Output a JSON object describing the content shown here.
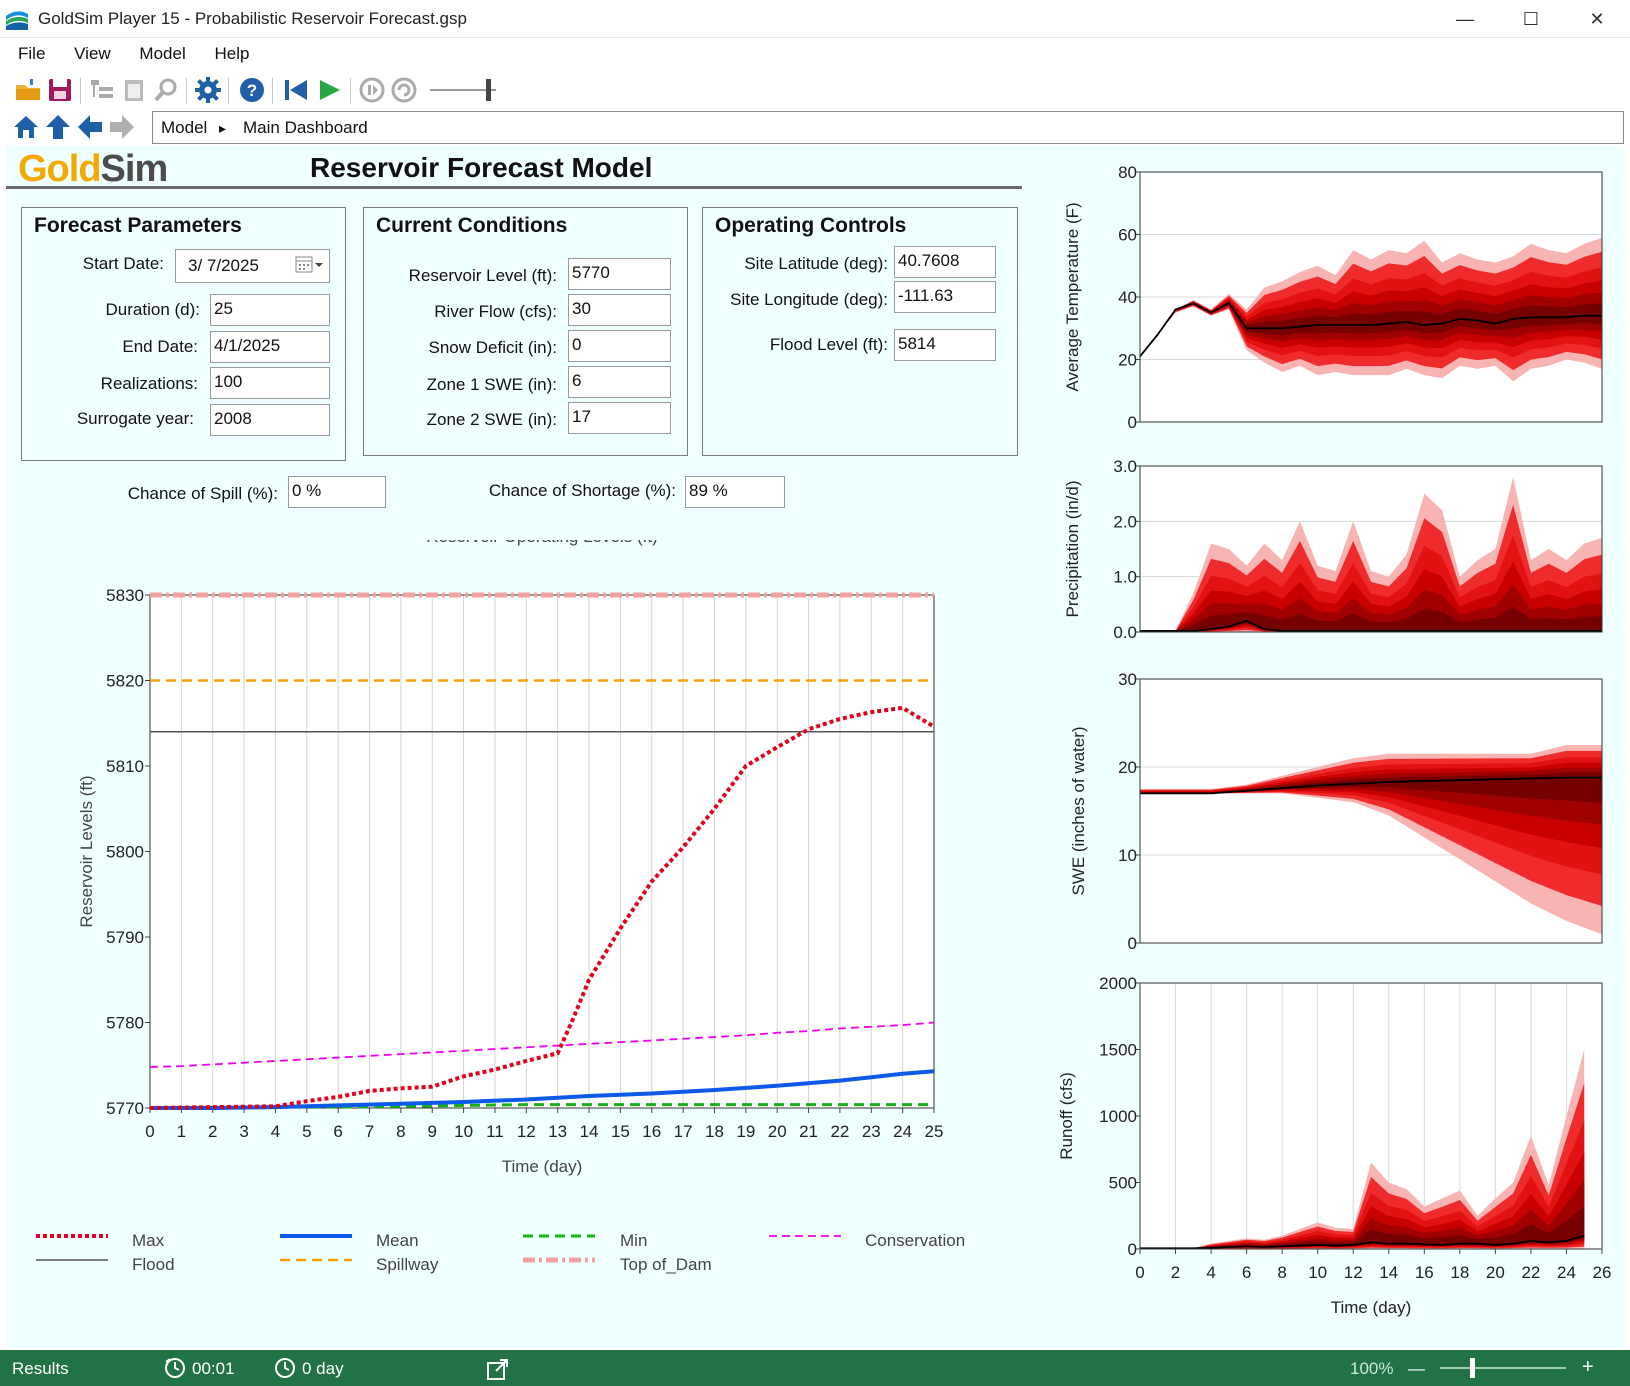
{
  "window": {
    "title": "GoldSim Player 15  - Probabilistic Reservoir Forecast.gsp",
    "minimize": "—",
    "maximize": "☐",
    "close": "✕"
  },
  "menu": [
    "File",
    "View",
    "Model",
    "Help"
  ],
  "breadcrumb": {
    "root": "Model",
    "sep": "▸",
    "current": "Main Dashboard"
  },
  "header": {
    "logo_gold": "Gold",
    "logo_sim": "Sim",
    "title": "Reservoir Forecast Model"
  },
  "forecast": {
    "title": "Forecast Parameters",
    "start_label": "Start Date:",
    "start_value": "3/  7/2025",
    "duration_label": "Duration (d):",
    "duration_value": "25",
    "end_label": "End Date:",
    "end_value": "4/1/2025",
    "realizations_label": "Realizations:",
    "realizations_value": "100",
    "surrogate_label": "Surrogate year:",
    "surrogate_value": "2008"
  },
  "conditions": {
    "title": "Current Conditions",
    "level_label": "Reservoir Level (ft):",
    "level_value": "5770",
    "flow_label": "River Flow (cfs):",
    "flow_value": "30",
    "snow_label": "Snow Deficit (in):",
    "snow_value": "0",
    "z1_label": "Zone 1 SWE (in):",
    "z1_value": "6",
    "z2_label": "Zone 2 SWE (in):",
    "z2_value": "17"
  },
  "controls": {
    "title": "Operating Controls",
    "lat_label": "Site Latitude (deg):",
    "lat_value": "40.7608",
    "lon_label": "Site Longitude (deg):",
    "lon_value": "-111.63",
    "flood_label": "Flood Level (ft):",
    "flood_value": "5814"
  },
  "results": {
    "spill_label": "Chance of Spill (%):",
    "spill_value": "0 %",
    "shortage_label": "Chance of Shortage (%):",
    "shortage_value": "89 %"
  },
  "status": {
    "results": "Results",
    "elapsed": "00:01",
    "simtime": "0 day",
    "zoom": "100%",
    "minus": "—",
    "plus": "+"
  },
  "colors": {
    "max": "#e0001b",
    "mean": "#0b5ae8",
    "min": "#16b316",
    "conservation": "#ee00ee",
    "flood": "#555555",
    "spillway": "#f5a000",
    "top_of_dam": "#f4a0a0"
  },
  "chart_data": [
    {
      "type": "line",
      "title": "Reservoir Operating Levels (ft)",
      "xlabel": "Time (day)",
      "ylabel": "Reservoir Levels (ft)",
      "xlim": [
        0,
        25
      ],
      "ylim": [
        5770,
        5830
      ],
      "xticks": [
        0,
        1,
        2,
        3,
        4,
        5,
        6,
        7,
        8,
        9,
        10,
        11,
        12,
        13,
        14,
        15,
        16,
        17,
        18,
        19,
        20,
        21,
        22,
        23,
        24,
        25
      ],
      "yticks": [
        5770,
        5780,
        5790,
        5800,
        5810,
        5820,
        5830
      ],
      "grid": "vertical",
      "legend": "bottom",
      "series": [
        {
          "name": "Max",
          "x": [
            0,
            4,
            5,
            6,
            7,
            8,
            9,
            10,
            11,
            12,
            13,
            13.5,
            14,
            15,
            16,
            17,
            18,
            19,
            20,
            21,
            22,
            23,
            24,
            25
          ],
          "y": [
            5770,
            5770.2,
            5770.8,
            5771.3,
            5772,
            5772.3,
            5772.5,
            5773.7,
            5774.5,
            5775.5,
            5776.4,
            5780.5,
            5785,
            5791,
            5796.5,
            5800.5,
            5805,
            5810,
            5812.2,
            5814.3,
            5815.5,
            5816.3,
            5816.8,
            5814.6
          ]
        },
        {
          "name": "Mean",
          "x": [
            0,
            2,
            4,
            6,
            8,
            10,
            12,
            14,
            16,
            18,
            20,
            22,
            23,
            24,
            25
          ],
          "y": [
            5770,
            5770,
            5770.1,
            5770.3,
            5770.5,
            5770.7,
            5771,
            5771.4,
            5771.7,
            5772.1,
            5772.6,
            5773.2,
            5773.6,
            5774,
            5774.3
          ]
        },
        {
          "name": "Min",
          "x": [
            0,
            2,
            4,
            6,
            8,
            10,
            12,
            14,
            16,
            18,
            20,
            22,
            24,
            25
          ],
          "y": [
            5770,
            5770,
            5770.1,
            5770.1,
            5770.2,
            5770.3,
            5770.4,
            5770.4,
            5770.4,
            5770.4,
            5770.4,
            5770.4,
            5770.4,
            5770.4
          ]
        },
        {
          "name": "Conservation",
          "x": [
            0,
            1,
            2,
            3,
            4,
            5,
            6,
            7,
            8,
            9,
            10,
            11,
            12,
            13,
            14,
            15,
            16,
            17,
            18,
            19,
            20,
            21,
            22,
            23,
            24,
            25
          ],
          "y": [
            5774.8,
            5774.9,
            5775.1,
            5775.3,
            5775.5,
            5775.7,
            5775.9,
            5776.1,
            5776.3,
            5776.5,
            5776.7,
            5776.9,
            5777.1,
            5777.3,
            5777.5,
            5777.7,
            5777.9,
            5778.1,
            5778.3,
            5778.5,
            5778.8,
            5779,
            5779.3,
            5779.5,
            5779.7,
            5780
          ]
        },
        {
          "name": "Flood",
          "x": [
            0,
            25
          ],
          "y": [
            5814,
            5814
          ]
        },
        {
          "name": "Spillway",
          "x": [
            0,
            25
          ],
          "y": [
            5820,
            5820
          ]
        },
        {
          "name": "Top of_Dam",
          "x": [
            0,
            25
          ],
          "y": [
            5830,
            5830
          ]
        }
      ]
    },
    {
      "type": "area",
      "ylabel": "Average Temperature (F)",
      "xlim": [
        0,
        26
      ],
      "ylim": [
        0,
        80
      ],
      "yticks": [
        0,
        20,
        40,
        60,
        80
      ],
      "grid": "horizontal",
      "x": [
        0,
        1,
        2,
        3,
        4,
        5,
        6,
        7,
        8,
        9,
        10,
        11,
        12,
        13,
        14,
        15,
        16,
        17,
        18,
        19,
        20,
        21,
        22,
        23,
        24,
        25,
        26
      ],
      "band_low": [
        21,
        28,
        35,
        37,
        34,
        36,
        23,
        19,
        16,
        18,
        15,
        16,
        15,
        15,
        15,
        17,
        15,
        14,
        18,
        17,
        18,
        13,
        17,
        18,
        20,
        19,
        17
      ],
      "band_high": [
        21,
        28,
        36,
        39,
        36,
        41,
        36,
        43,
        45,
        48,
        50,
        47,
        55,
        52,
        55,
        54,
        58,
        51,
        54,
        52,
        51,
        53,
        57,
        55,
        54,
        57,
        59
      ],
      "median": [
        21,
        28,
        36,
        38,
        35,
        38,
        30,
        30,
        30,
        30.5,
        31,
        31,
        31,
        31,
        31.5,
        32,
        31,
        31.5,
        33,
        32.5,
        31.5,
        33,
        33.5,
        33.5,
        33.5,
        34,
        34
      ]
    },
    {
      "type": "area",
      "ylabel": "Precipitation (in/d)",
      "xlim": [
        0,
        26
      ],
      "ylim": [
        0,
        3.0
      ],
      "yticks": [
        0.0,
        1.0,
        2.0,
        3.0
      ],
      "grid": "horizontal",
      "x": [
        0,
        1,
        2,
        3,
        4,
        5,
        6,
        7,
        8,
        9,
        10,
        11,
        12,
        13,
        14,
        15,
        16,
        17,
        18,
        19,
        20,
        21,
        22,
        23,
        24,
        25,
        26
      ],
      "band_high": [
        0.02,
        0.02,
        0.02,
        0.7,
        1.6,
        1.5,
        1.2,
        1.6,
        1.3,
        2.0,
        1.2,
        1.1,
        2.0,
        1.1,
        1.0,
        1.4,
        2.5,
        2.2,
        1.0,
        1.3,
        1.5,
        2.8,
        1.3,
        1.5,
        1.3,
        1.6,
        1.7
      ],
      "median": [
        0.02,
        0.02,
        0.02,
        0.02,
        0.05,
        0.1,
        0.2,
        0.05,
        0.02,
        0.02,
        0.02,
        0.02,
        0.02,
        0.02,
        0.02,
        0.02,
        0.02,
        0.02,
        0.02,
        0.02,
        0.02,
        0.02,
        0.02,
        0.02,
        0.02,
        0.02,
        0.02
      ]
    },
    {
      "type": "area",
      "ylabel": "SWE (inches of water)",
      "xlim": [
        0,
        26
      ],
      "ylim": [
        0,
        30
      ],
      "yticks": [
        0,
        10,
        20,
        30
      ],
      "grid": "horizontal",
      "x": [
        0,
        2,
        4,
        6,
        8,
        10,
        12,
        14,
        16,
        18,
        20,
        22,
        24,
        26
      ],
      "band_low": [
        17,
        17,
        17,
        17,
        17,
        16.5,
        16,
        14.5,
        12,
        9.5,
        7,
        4.5,
        2.5,
        1
      ],
      "band_high": [
        17.5,
        17.5,
        17.5,
        18,
        19,
        20,
        21,
        21.5,
        21.5,
        21.5,
        21.5,
        21.5,
        22.5,
        22.5
      ],
      "median": [
        17,
        17,
        17,
        17.3,
        17.6,
        17.9,
        18.1,
        18.3,
        18.4,
        18.5,
        18.6,
        18.7,
        18.8,
        18.8
      ]
    },
    {
      "type": "area",
      "ylabel": "Runoff (cfs)",
      "xlabel": "Time (day)",
      "xlim": [
        0,
        26
      ],
      "ylim": [
        0,
        2000
      ],
      "yticks": [
        0,
        500,
        1000,
        1500,
        2000
      ],
      "xticks": [
        0,
        2,
        4,
        6,
        8,
        10,
        12,
        14,
        16,
        18,
        20,
        22,
        24,
        26
      ],
      "grid": "vertical",
      "x": [
        0,
        2,
        3,
        4,
        5,
        6,
        7,
        8,
        9,
        10,
        11,
        12,
        13,
        14,
        15,
        16,
        17,
        18,
        19,
        20,
        21,
        22,
        23,
        24,
        25
      ],
      "band_high": [
        5,
        5,
        5,
        40,
        60,
        80,
        70,
        100,
        150,
        200,
        160,
        150,
        650,
        500,
        450,
        320,
        380,
        440,
        250,
        380,
        500,
        850,
        480,
        1000,
        1500
      ],
      "median": [
        5,
        5,
        5,
        10,
        15,
        20,
        15,
        20,
        25,
        30,
        25,
        30,
        50,
        40,
        40,
        35,
        30,
        40,
        40,
        30,
        40,
        60,
        50,
        60,
        100
      ]
    }
  ]
}
